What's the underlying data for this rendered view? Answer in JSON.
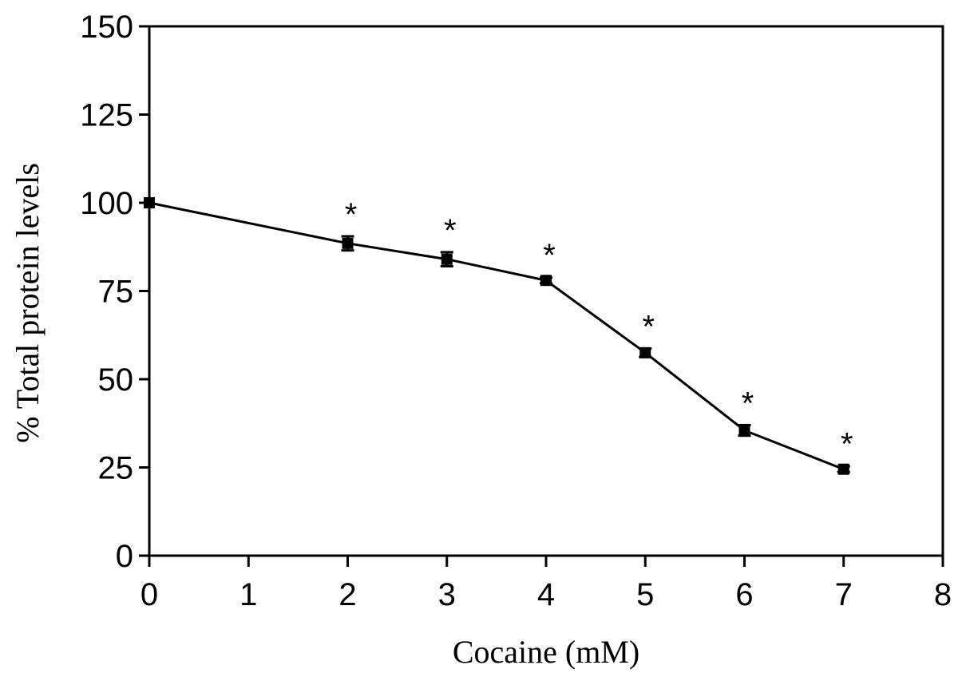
{
  "chart_data": {
    "type": "line",
    "title": "",
    "xlabel": "Cocaine (mM)",
    "ylabel": "% Total protein levels",
    "xlim": [
      0,
      8
    ],
    "ylim": [
      0,
      150
    ],
    "xticks": [
      0,
      1,
      2,
      3,
      4,
      5,
      6,
      7,
      8
    ],
    "yticks": [
      0,
      25,
      50,
      75,
      100,
      125,
      150
    ],
    "grid": false,
    "legend": "none",
    "series": [
      {
        "color": "#000000",
        "marker": "square",
        "x": [
          0,
          2,
          3,
          4,
          5,
          6,
          7
        ],
        "y": [
          100,
          88.5,
          84,
          78,
          57.5,
          35.5,
          24.5
        ],
        "error": [
          0,
          2,
          2,
          0.8,
          1.2,
          1.5,
          0.8
        ],
        "annotations": [
          "",
          "*",
          "*",
          "*",
          "*",
          "*",
          "*"
        ]
      }
    ]
  }
}
